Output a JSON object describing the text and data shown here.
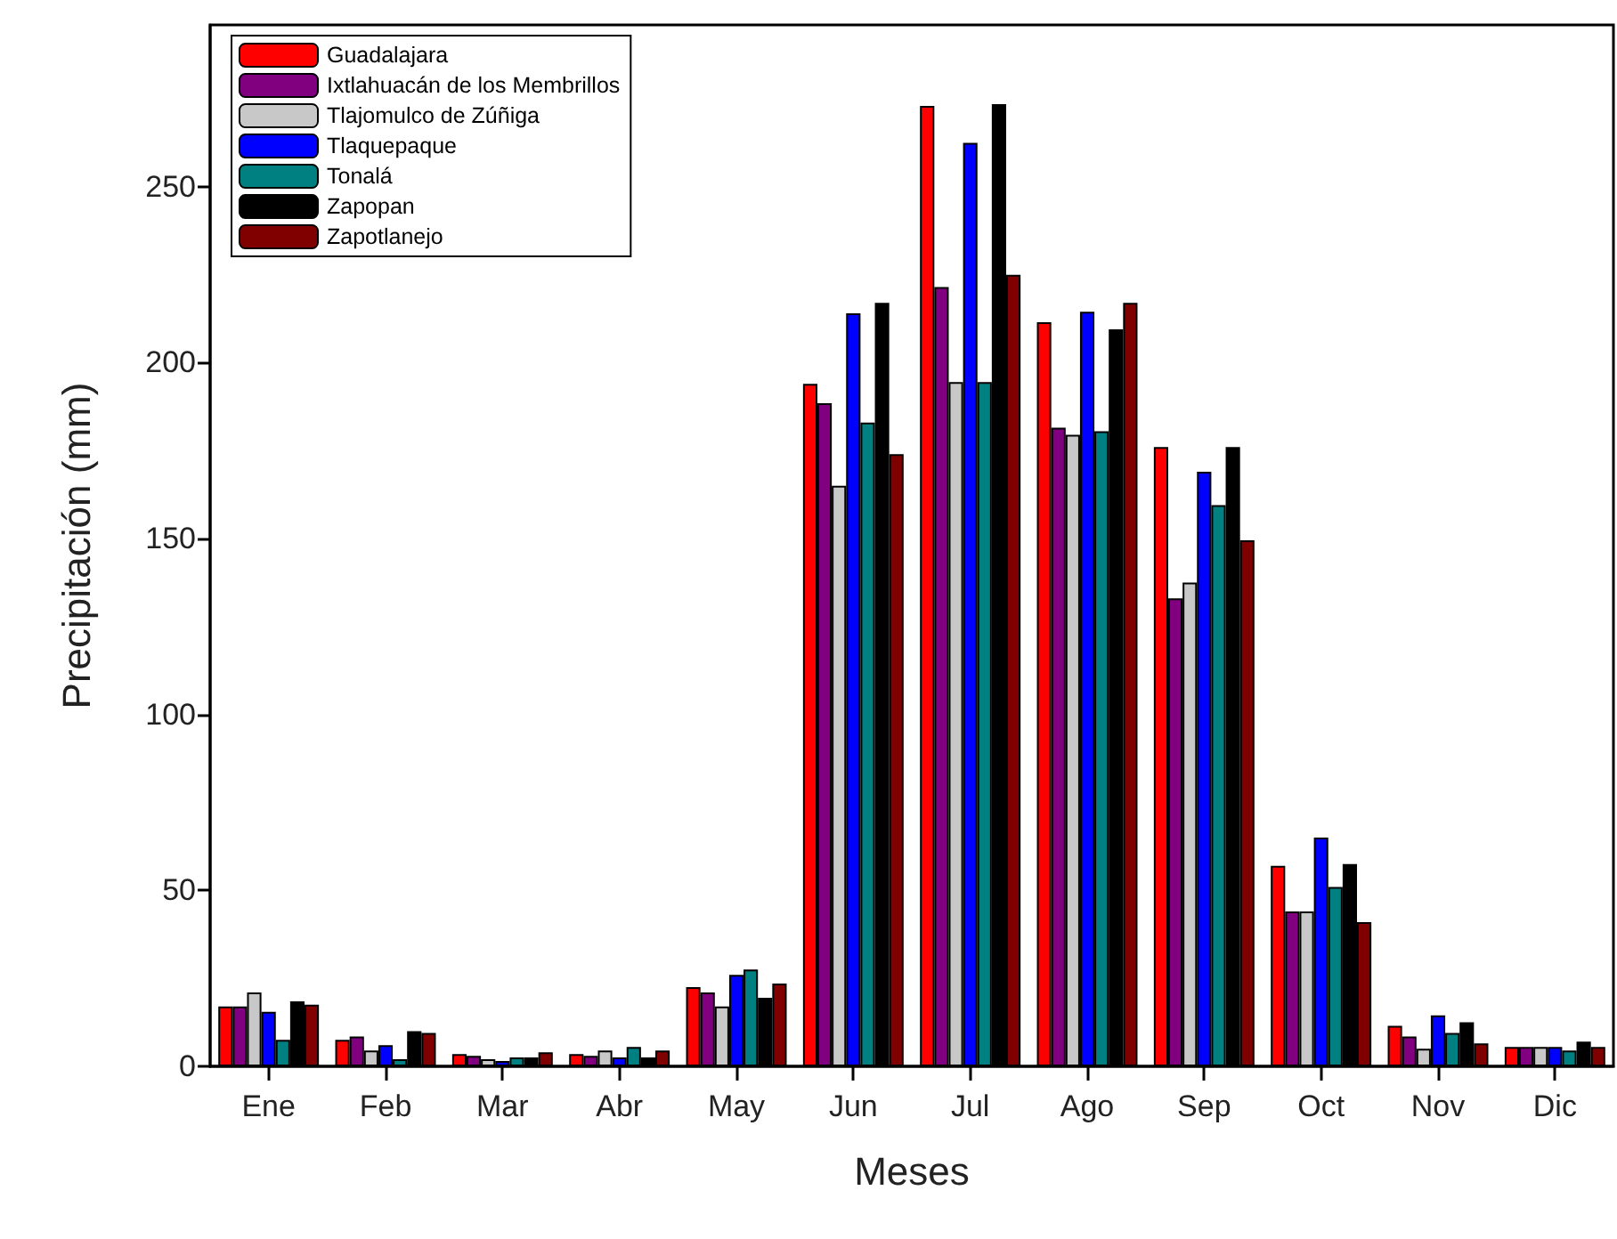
{
  "chart_data": {
    "type": "bar",
    "xlabel": "Meses",
    "ylabel": "Precipitación (mm)",
    "categories": [
      "Ene",
      "Feb",
      "Mar",
      "Abr",
      "May",
      "Jun",
      "Jul",
      "Ago",
      "Sep",
      "Oct",
      "Nov",
      "Dic"
    ],
    "series": [
      {
        "name": "Guadalajara",
        "color": "#ff0000",
        "values": [
          17,
          7.5,
          3.5,
          3.5,
          22.5,
          194,
          273,
          211.5,
          176,
          57,
          11.5,
          5.5
        ]
      },
      {
        "name": "Ixtlahuacán de los Membrillos",
        "color": "#800080",
        "values": [
          17,
          8.5,
          3,
          3,
          21,
          188.5,
          221.5,
          181.5,
          133,
          44,
          8.5,
          5.5
        ]
      },
      {
        "name": "Tlajomulco de Zúñiga",
        "color": "#c8c8c8",
        "values": [
          21,
          4.5,
          2,
          4.5,
          17,
          165,
          194.5,
          179.5,
          137.5,
          44,
          5,
          5.5
        ]
      },
      {
        "name": "Tlaquepaque",
        "color": "#0000ff",
        "values": [
          15.5,
          6,
          1.5,
          2.5,
          26,
          214,
          262.5,
          214.5,
          169,
          65,
          14.5,
          5.5
        ]
      },
      {
        "name": "Tonalá",
        "color": "#008080",
        "values": [
          7.5,
          2,
          2.5,
          5.5,
          27.5,
          183,
          194.5,
          180.5,
          159.5,
          51,
          9.5,
          4.5
        ]
      },
      {
        "name": "Zapopan",
        "color": "#000000",
        "values": [
          18.5,
          10,
          2.5,
          2.5,
          19.5,
          217,
          273.5,
          209.5,
          176,
          57.5,
          12.5,
          7
        ]
      },
      {
        "name": "Zapotlanejo",
        "color": "#800000",
        "values": [
          17.5,
          9.5,
          4,
          4.5,
          23.5,
          174,
          225,
          217,
          149.5,
          41,
          6.5,
          5.5
        ]
      }
    ],
    "ylim": [
      0,
      296
    ],
    "yticks": [
      0,
      50,
      100,
      150,
      200,
      250
    ],
    "grid": false,
    "legend": "top left"
  }
}
